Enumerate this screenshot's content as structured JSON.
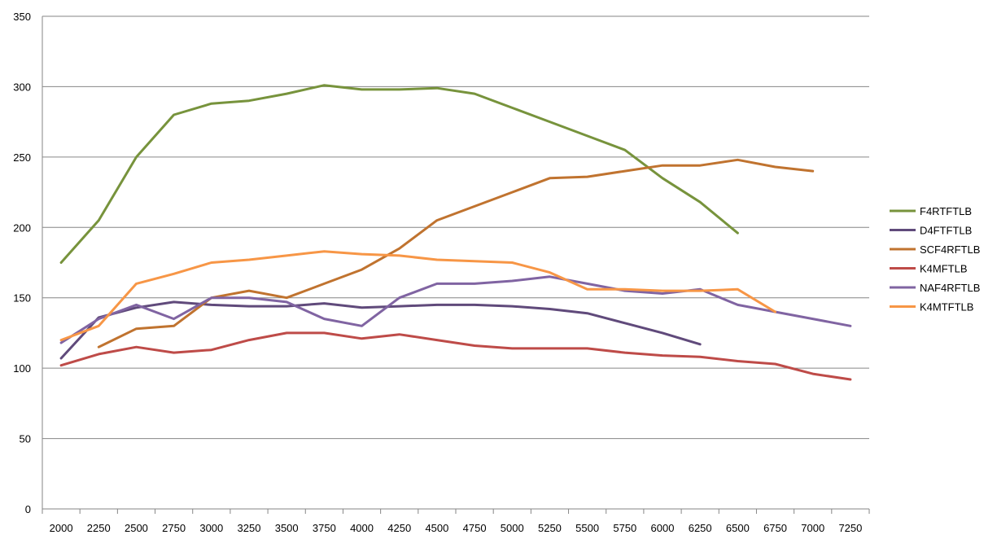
{
  "chart_data": {
    "type": "line",
    "title": "",
    "xlabel": "",
    "ylabel": "",
    "x": [
      "2000",
      "2250",
      "2500",
      "2750",
      "3000",
      "3250",
      "3500",
      "3750",
      "4000",
      "4250",
      "4500",
      "4750",
      "5000",
      "5250",
      "5500",
      "5750",
      "6000",
      "6250",
      "6500",
      "6750",
      "7000",
      "7250"
    ],
    "ylim": [
      0,
      350
    ],
    "yticks": [
      0,
      50,
      100,
      150,
      200,
      250,
      300,
      350
    ],
    "grid": "horizontal",
    "legend": "right",
    "series": [
      {
        "name": "F4RTFTLB",
        "color": "#77933C",
        "values": [
          175,
          205,
          250,
          280,
          288,
          290,
          295,
          301,
          298,
          298,
          299,
          295,
          285,
          275,
          265,
          255,
          235,
          218,
          196,
          null,
          null,
          null
        ]
      },
      {
        "name": "D4FTFTLB",
        "color": "#604A7B",
        "values": [
          107,
          136,
          143,
          147,
          145,
          144,
          144,
          146,
          143,
          144,
          145,
          145,
          144,
          142,
          139,
          132,
          125,
          117,
          null,
          null,
          null,
          null
        ]
      },
      {
        "name": "SCF4RFTLB",
        "color": "#C0732F",
        "values": [
          null,
          115,
          128,
          130,
          150,
          155,
          150,
          160,
          170,
          185,
          205,
          215,
          225,
          235,
          236,
          240,
          244,
          244,
          248,
          243,
          240,
          null
        ]
      },
      {
        "name": "K4MFTLB",
        "color": "#BE4B48",
        "values": [
          102,
          110,
          115,
          111,
          113,
          120,
          125,
          125,
          121,
          124,
          120,
          116,
          114,
          114,
          114,
          111,
          109,
          108,
          105,
          103,
          96,
          92
        ]
      },
      {
        "name": "NAF4RFTLB",
        "color": "#8064A2",
        "values": [
          118,
          135,
          145,
          135,
          150,
          150,
          147,
          135,
          130,
          150,
          160,
          160,
          162,
          165,
          160,
          155,
          153,
          156,
          145,
          140,
          135,
          130
        ]
      },
      {
        "name": "K4MTFTLB",
        "color": "#F79646",
        "values": [
          120,
          130,
          160,
          167,
          175,
          177,
          180,
          183,
          181,
          180,
          177,
          176,
          175,
          168,
          156,
          156,
          155,
          155,
          156,
          140,
          null,
          null
        ]
      }
    ]
  }
}
